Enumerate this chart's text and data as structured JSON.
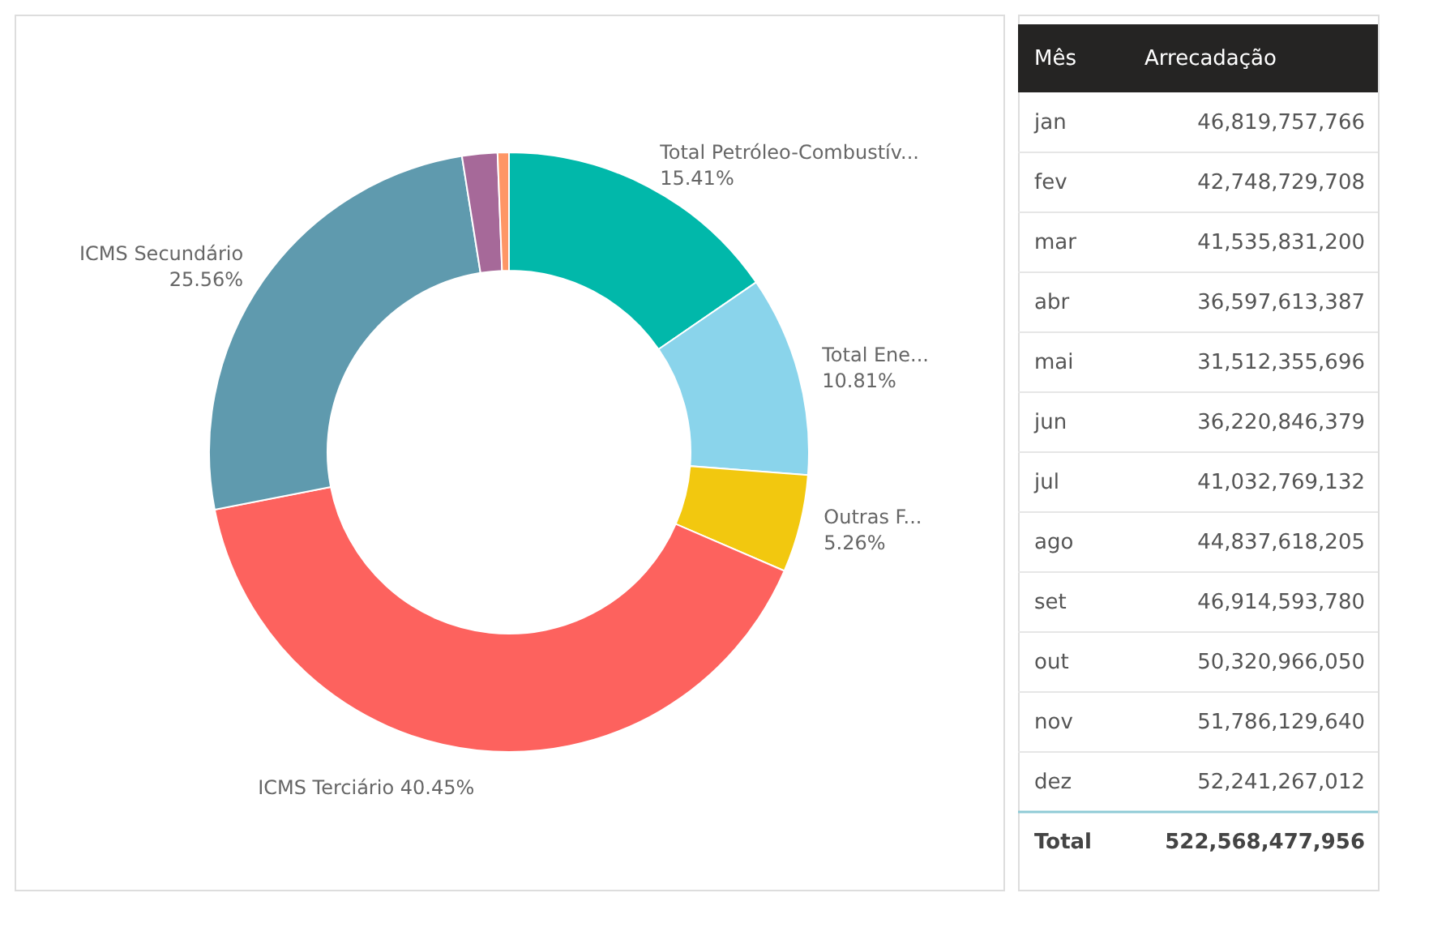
{
  "chart_data": [
    {
      "type": "donut",
      "categories": [
        "Total Petróleo-Combustív...",
        "Total Ene...",
        "Outras F...",
        "ICMS Terciário",
        "ICMS Secundário",
        null,
        null
      ],
      "values": [
        15.41,
        10.81,
        5.26,
        40.45,
        25.56,
        1.9,
        0.61
      ],
      "value_labels": [
        "15.41%",
        "10.81%",
        "5.26%",
        "40.45%",
        "25.56%",
        null,
        null
      ],
      "colors": [
        "#01b8aa",
        "#8ad4eb",
        "#f2c80f",
        "#fd625e",
        "#5f9aae",
        "#a66999",
        "#fe9666"
      ],
      "legend": false
    },
    {
      "type": "other",
      "xlabel": "Mês",
      "ylabel": "Arrecadação",
      "categories": [
        "jan",
        "fev",
        "mar",
        "abr",
        "mai",
        "jun",
        "jul",
        "ago",
        "set",
        "out",
        "nov",
        "dez"
      ],
      "values": [
        46819757766,
        42748729708,
        41535831200,
        36597613387,
        31512355696,
        36220846379,
        41032769132,
        44837618205,
        46914593780,
        50320966050,
        51786129640,
        52241267012
      ],
      "value_labels": [
        "46,819,757,766",
        "42,748,729,708",
        "41,535,831,200",
        "36,597,613,387",
        "31,512,355,696",
        "36,220,846,379",
        "41,032,769,132",
        "44,837,618,205",
        "46,914,593,780",
        "50,320,966,050",
        "51,786,129,640",
        "52,241,267,012"
      ],
      "annotations": [
        "Total",
        "522,568,477,956"
      ]
    }
  ]
}
